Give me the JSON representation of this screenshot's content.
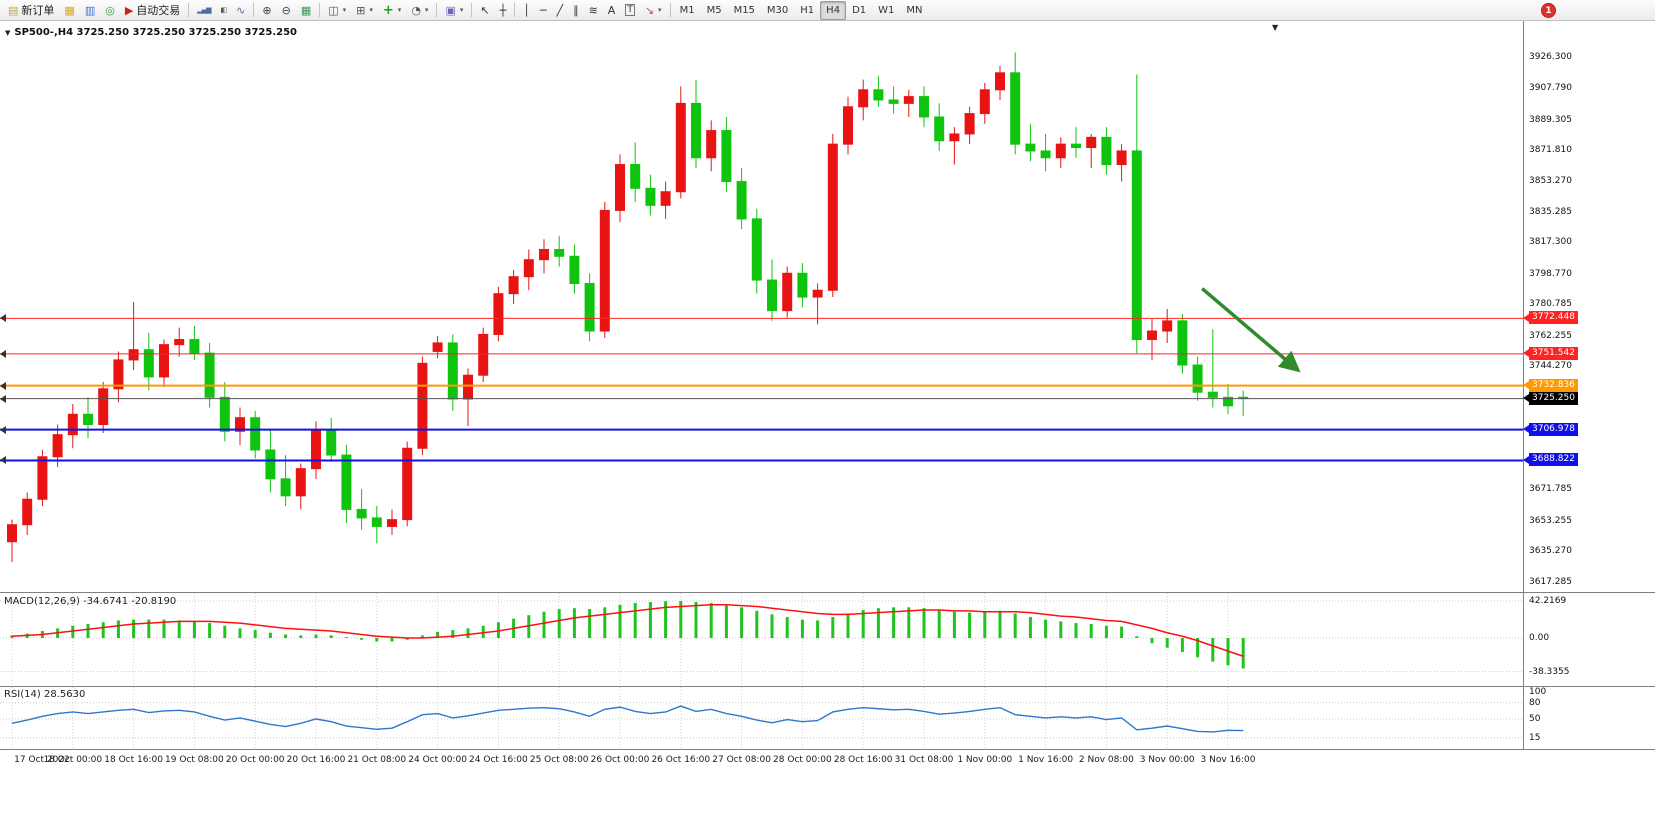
{
  "window": {
    "notification_badge": "1"
  },
  "toolbar": {
    "items": [
      {
        "k": "btn",
        "n": "new-order",
        "g": "▤",
        "gc": "#caa53d",
        "label": "新订单"
      },
      {
        "k": "ico",
        "n": "charts-profile",
        "g": "▦",
        "gc": "#d9a516"
      },
      {
        "k": "ico",
        "n": "market-watch",
        "g": "▥",
        "gc": "#3b6fd4"
      },
      {
        "k": "ico",
        "n": "navigator",
        "g": "◎",
        "gc": "#2e9e4f"
      },
      {
        "k": "btn",
        "n": "autotrade",
        "g": "▶",
        "gc": "#cc2222",
        "label": "自动交易"
      },
      {
        "k": "sep"
      },
      {
        "k": "ico",
        "n": "bar-chart",
        "g": "▂▄▆",
        "gc": "#4a6da8",
        "small": true
      },
      {
        "k": "ico",
        "n": "candlestick-chart",
        "g": "▮▯",
        "gc": "#555555",
        "small": true
      },
      {
        "k": "ico",
        "n": "line-chart",
        "g": "∿",
        "gc": "#4a6da8"
      },
      {
        "k": "sep"
      },
      {
        "k": "ico",
        "n": "zoom-in",
        "g": "⊕",
        "gc": "#444444"
      },
      {
        "k": "ico",
        "n": "zoom-out",
        "g": "⊖",
        "gc": "#444444"
      },
      {
        "k": "ico",
        "n": "tile-windows",
        "g": "▦",
        "gc": "#2e9e4f"
      },
      {
        "k": "sep"
      },
      {
        "k": "ico",
        "n": "arrange-windows",
        "g": "◫",
        "gc": "#555555",
        "caret": true
      },
      {
        "k": "ico",
        "n": "cascade-windows",
        "g": "⊞",
        "gc": "#555555",
        "caret": true
      },
      {
        "k": "ico",
        "n": "add-indicator",
        "g": "+",
        "gc": "#1e9e1e",
        "bold": true,
        "caret": true
      },
      {
        "k": "ico",
        "n": "period-clock",
        "g": "◔",
        "gc": "#555555",
        "caret": true
      },
      {
        "k": "sep"
      },
      {
        "k": "ico",
        "n": "chart-template",
        "g": "▣",
        "gc": "#7a5ec0",
        "caret": true
      },
      {
        "k": "sep"
      },
      {
        "k": "ico",
        "n": "cursor",
        "g": "↖",
        "gc": "#333333"
      },
      {
        "k": "ico",
        "n": "crosshair",
        "g": "┼",
        "gc": "#333333"
      },
      {
        "k": "sep"
      },
      {
        "k": "ico",
        "n": "vertical-line",
        "g": "│",
        "gc": "#333333"
      },
      {
        "k": "ico",
        "n": "horizontal-line",
        "g": "─",
        "gc": "#333333"
      },
      {
        "k": "ico",
        "n": "trendline",
        "g": "╱",
        "gc": "#333333"
      },
      {
        "k": "ico",
        "n": "equidistant-channel",
        "g": "∥",
        "gc": "#333333"
      },
      {
        "k": "ico",
        "n": "fibonacci",
        "g": "≋",
        "gc": "#333333"
      },
      {
        "k": "ico",
        "n": "text",
        "g": "A",
        "gc": "#333333"
      },
      {
        "k": "ico",
        "n": "text-label",
        "g": "T",
        "gc": "#333333",
        "boxed": true
      },
      {
        "k": "ico",
        "n": "arrows",
        "g": "↘",
        "gc": "#cc4444",
        "caret": true
      },
      {
        "k": "sep"
      },
      {
        "k": "tfgroup"
      }
    ],
    "timeframes": [
      "M1",
      "M5",
      "M15",
      "M30",
      "H1",
      "H4",
      "D1",
      "W1",
      "MN"
    ],
    "active_timeframe": "H4"
  },
  "chart": {
    "title": "SP500-,H4 3725.250 3725.250 3725.250 3725.250",
    "macd_label": "MACD(12,26,9) -34.6741 -20.8190",
    "rsi_label": "RSI(14) 28.5630"
  },
  "chart_data": {
    "type": "candlestick",
    "symbol": "SP500-",
    "timeframe": "H4",
    "ohlc_current": [
      3725.25,
      3725.25,
      3725.25,
      3725.25
    ],
    "ylim": [
      3612.6,
      3948.1
    ],
    "colors": {
      "up": "#e81414",
      "down": "#0fc40f",
      "macd_bar": "#1fc41f",
      "macd_signal": "#ff1010",
      "rsi_line": "#2f76cc",
      "arrow": "#2e8b2e",
      "grid_dot": "#c8c8c8",
      "vgrid_dot": "#d4d4d4",
      "current_line": "#555555",
      "current_badge": "#000000"
    },
    "candles": [
      [
        3641,
        3654,
        3629,
        3651
      ],
      [
        3651,
        3670,
        3645,
        3666
      ],
      [
        3666,
        3695,
        3662,
        3691
      ],
      [
        3691,
        3710,
        3685,
        3704
      ],
      [
        3704,
        3722,
        3696,
        3716
      ],
      [
        3716,
        3726,
        3702,
        3710
      ],
      [
        3710,
        3735,
        3705,
        3731
      ],
      [
        3731,
        3753,
        3723,
        3748
      ],
      [
        3748,
        3782,
        3742,
        3754
      ],
      [
        3754,
        3764,
        3730,
        3738
      ],
      [
        3738,
        3760,
        3732,
        3757
      ],
      [
        3757,
        3767,
        3750,
        3760
      ],
      [
        3760,
        3768,
        3748,
        3752
      ],
      [
        3752,
        3758,
        3720,
        3726
      ],
      [
        3726,
        3735,
        3700,
        3706
      ],
      [
        3706,
        3720,
        3698,
        3714
      ],
      [
        3714,
        3718,
        3690,
        3695
      ],
      [
        3695,
        3707,
        3670,
        3678
      ],
      [
        3678,
        3692,
        3662,
        3668
      ],
      [
        3668,
        3687,
        3660,
        3684
      ],
      [
        3684,
        3712,
        3678,
        3707
      ],
      [
        3707,
        3714,
        3688,
        3692
      ],
      [
        3692,
        3698,
        3652,
        3660
      ],
      [
        3660,
        3672,
        3648,
        3655
      ],
      [
        3655,
        3662,
        3640,
        3650
      ],
      [
        3650,
        3660,
        3645,
        3654
      ],
      [
        3654,
        3700,
        3650,
        3696
      ],
      [
        3696,
        3750,
        3692,
        3746
      ],
      [
        3753,
        3762,
        3749,
        3758
      ],
      [
        3758,
        3763,
        3718,
        3725
      ],
      [
        3725,
        3743,
        3709,
        3739
      ],
      [
        3739,
        3767,
        3735,
        3763
      ],
      [
        3763,
        3791,
        3759,
        3787
      ],
      [
        3787,
        3801,
        3781,
        3797
      ],
      [
        3797,
        3813,
        3789,
        3807
      ],
      [
        3807,
        3819,
        3799,
        3813
      ],
      [
        3813,
        3821,
        3803,
        3809
      ],
      [
        3809,
        3816,
        3787,
        3793
      ],
      [
        3793,
        3799,
        3759,
        3765
      ],
      [
        3765,
        3841,
        3761,
        3836
      ],
      [
        3836,
        3869,
        3829,
        3863
      ],
      [
        3863,
        3876,
        3841,
        3849
      ],
      [
        3849,
        3857,
        3833,
        3839
      ],
      [
        3839,
        3853,
        3831,
        3847
      ],
      [
        3847,
        3909,
        3843,
        3899
      ],
      [
        3899,
        3913,
        3861,
        3867
      ],
      [
        3867,
        3889,
        3859,
        3883
      ],
      [
        3883,
        3891,
        3847,
        3853
      ],
      [
        3853,
        3861,
        3825,
        3831
      ],
      [
        3831,
        3837,
        3787,
        3795
      ],
      [
        3795,
        3807,
        3771,
        3777
      ],
      [
        3777,
        3803,
        3773,
        3799
      ],
      [
        3799,
        3805,
        3779,
        3785
      ],
      [
        3785,
        3793,
        3769,
        3789
      ],
      [
        3789,
        3881,
        3785,
        3875
      ],
      [
        3875,
        3903,
        3869,
        3897
      ],
      [
        3897,
        3913,
        3889,
        3907
      ],
      [
        3907,
        3915,
        3897,
        3901
      ],
      [
        3901,
        3909,
        3893,
        3899
      ],
      [
        3899,
        3907,
        3891,
        3903
      ],
      [
        3903,
        3909,
        3885,
        3891
      ],
      [
        3891,
        3899,
        3871,
        3877
      ],
      [
        3877,
        3885,
        3863,
        3881
      ],
      [
        3881,
        3897,
        3875,
        3893
      ],
      [
        3893,
        3911,
        3887,
        3907
      ],
      [
        3907,
        3921,
        3901,
        3917
      ],
      [
        3917,
        3929,
        3869,
        3875
      ],
      [
        3875,
        3887,
        3865,
        3871
      ],
      [
        3871,
        3881,
        3859,
        3867
      ],
      [
        3867,
        3879,
        3861,
        3875
      ],
      [
        3875,
        3885,
        3867,
        3873
      ],
      [
        3873,
        3881,
        3861,
        3879
      ],
      [
        3879,
        3885,
        3857,
        3863
      ],
      [
        3863,
        3875,
        3853,
        3871
      ],
      [
        3871,
        3916,
        3752,
        3760
      ],
      [
        3760,
        3772,
        3748,
        3765
      ],
      [
        3765,
        3778,
        3758,
        3771
      ],
      [
        3771,
        3775,
        3740,
        3745
      ],
      [
        3745,
        3750,
        3724,
        3729
      ],
      [
        3729,
        3766,
        3720,
        3726
      ],
      [
        3726,
        3734,
        3716,
        3721
      ],
      [
        3726,
        3730,
        3715,
        3725.25
      ]
    ],
    "time_labels": [
      {
        "i": 0,
        "t": "17 Oct 2022"
      },
      {
        "i": 4,
        "t": "18 Oct 00:00"
      },
      {
        "i": 8,
        "t": "18 Oct 16:00"
      },
      {
        "i": 12,
        "t": "19 Oct 08:00"
      },
      {
        "i": 16,
        "t": "20 Oct 00:00"
      },
      {
        "i": 20,
        "t": "20 Oct 16:00"
      },
      {
        "i": 24,
        "t": "21 Oct 08:00"
      },
      {
        "i": 28,
        "t": "24 Oct 00:00"
      },
      {
        "i": 32,
        "t": "24 Oct 16:00"
      },
      {
        "i": 36,
        "t": "25 Oct 08:00"
      },
      {
        "i": 40,
        "t": "26 Oct 00:00"
      },
      {
        "i": 44,
        "t": "26 Oct 16:00"
      },
      {
        "i": 48,
        "t": "27 Oct 08:00"
      },
      {
        "i": 52,
        "t": "28 Oct 00:00"
      },
      {
        "i": 56,
        "t": "28 Oct 16:00"
      },
      {
        "i": 60,
        "t": "31 Oct 08:00"
      },
      {
        "i": 64,
        "t": "1 Nov 00:00"
      },
      {
        "i": 68,
        "t": "1 Nov 16:00"
      },
      {
        "i": 72,
        "t": "2 Nov 08:00"
      },
      {
        "i": 76,
        "t": "3 Nov 00:00"
      },
      {
        "i": 80,
        "t": "3 Nov 16:00"
      }
    ],
    "price_grid_labels": [
      {
        "v": 3926.3,
        "t": "3926.300"
      },
      {
        "v": 3907.79,
        "t": "3907.790"
      },
      {
        "v": 3889.305,
        "t": "3889.305"
      },
      {
        "v": 3871.81,
        "t": "3871.810"
      },
      {
        "v": 3853.27,
        "t": "3853.270"
      },
      {
        "v": 3835.285,
        "t": "3835.285"
      },
      {
        "v": 3817.3,
        "t": "3817.300"
      },
      {
        "v": 3798.77,
        "t": "3798.770"
      },
      {
        "v": 3780.785,
        "t": "3780.785"
      },
      {
        "v": 3762.255,
        "t": "3762.255"
      },
      {
        "v": 3744.27,
        "t": "3744.270"
      },
      {
        "v": 3671.785,
        "t": "3671.785"
      },
      {
        "v": 3653.255,
        "t": "3653.255"
      },
      {
        "v": 3635.27,
        "t": "3635.270"
      },
      {
        "v": 3617.285,
        "t": "3617.285"
      }
    ],
    "hlines": [
      {
        "v": 3772.448,
        "t": "3772.448",
        "color": "#ff2222",
        "w": 1
      },
      {
        "v": 3751.542,
        "t": "3751.542",
        "color": "#ff2222",
        "w": 1
      },
      {
        "v": 3732.836,
        "t": "3732.836",
        "color": "#ff9900",
        "w": 2
      },
      {
        "v": 3706.978,
        "t": "3706.978",
        "color": "#1010e8",
        "w": 2
      },
      {
        "v": 3688.822,
        "t": "3688.822",
        "color": "#1010e8",
        "w": 2
      }
    ],
    "current_price": {
      "v": 3725.25,
      "t": "3725.250"
    },
    "arrow": {
      "i1": 78.3,
      "p1": 3790,
      "i2": 84.6,
      "p2": 3742
    },
    "macd": {
      "params": "12,26,9",
      "value": -34.6741,
      "signal_value": -20.819,
      "scale_labels": [
        {
          "v": 42.2169,
          "t": "42.2169"
        },
        {
          "v": 0,
          "t": "0.00"
        },
        {
          "v": -38.3355,
          "t": "-38.3355"
        }
      ],
      "values": [
        3,
        5,
        8,
        11,
        14,
        16,
        18,
        20,
        21,
        21,
        21,
        20,
        19,
        17,
        14,
        11,
        9,
        6,
        4,
        3,
        4,
        3,
        1,
        -2,
        -4,
        -4,
        -2,
        3,
        7,
        9,
        11,
        14,
        18,
        22,
        26,
        30,
        33,
        34,
        33,
        35,
        38,
        40,
        41,
        42,
        42.2,
        41,
        40,
        38,
        35,
        31,
        27,
        24,
        21,
        20,
        24,
        28,
        32,
        34,
        35,
        35,
        34,
        32,
        30,
        29,
        30,
        31,
        28,
        24,
        21,
        19,
        17,
        16,
        14,
        13,
        2,
        -6,
        -11,
        -16,
        -22,
        -27,
        -31,
        -34.67
      ],
      "signal": [
        2,
        3,
        4,
        6,
        8,
        10,
        12,
        14,
        16,
        17,
        18,
        19,
        19,
        19,
        18,
        17,
        15,
        13,
        11,
        10,
        9,
        8,
        6,
        4,
        2,
        1,
        0,
        0,
        1,
        2,
        4,
        6,
        8,
        11,
        14,
        17,
        20,
        23,
        25,
        27,
        29,
        31,
        33,
        35,
        36,
        37,
        38,
        38,
        37,
        36,
        34,
        32,
        30,
        28,
        27,
        27,
        28,
        29,
        30,
        31,
        32,
        32,
        31,
        31,
        30,
        30,
        30,
        29,
        27,
        25,
        24,
        22,
        20,
        19,
        15,
        11,
        6,
        2,
        -3,
        -9,
        -15,
        -20.82
      ]
    },
    "rsi": {
      "period": 14,
      "value": 28.563,
      "levels": [
        80,
        50,
        15
      ],
      "scale_labels": [
        {
          "v": 100,
          "t": "100"
        },
        {
          "v": 80,
          "t": "80"
        },
        {
          "v": 50,
          "t": "50"
        },
        {
          "v": 15,
          "t": "15"
        }
      ],
      "values": [
        42,
        48,
        55,
        60,
        63,
        60,
        63,
        66,
        68,
        62,
        65,
        66,
        63,
        55,
        48,
        52,
        46,
        40,
        36,
        42,
        50,
        45,
        37,
        34,
        31,
        33,
        45,
        58,
        60,
        52,
        56,
        61,
        66,
        68,
        70,
        71,
        69,
        63,
        55,
        68,
        72,
        64,
        60,
        63,
        74,
        64,
        68,
        60,
        55,
        48,
        43,
        49,
        45,
        47,
        63,
        68,
        71,
        69,
        67,
        68,
        64,
        59,
        61,
        64,
        68,
        71,
        58,
        55,
        52,
        54,
        52,
        54,
        49,
        52,
        30,
        33,
        37,
        32,
        27,
        26,
        29,
        28.56
      ]
    }
  }
}
